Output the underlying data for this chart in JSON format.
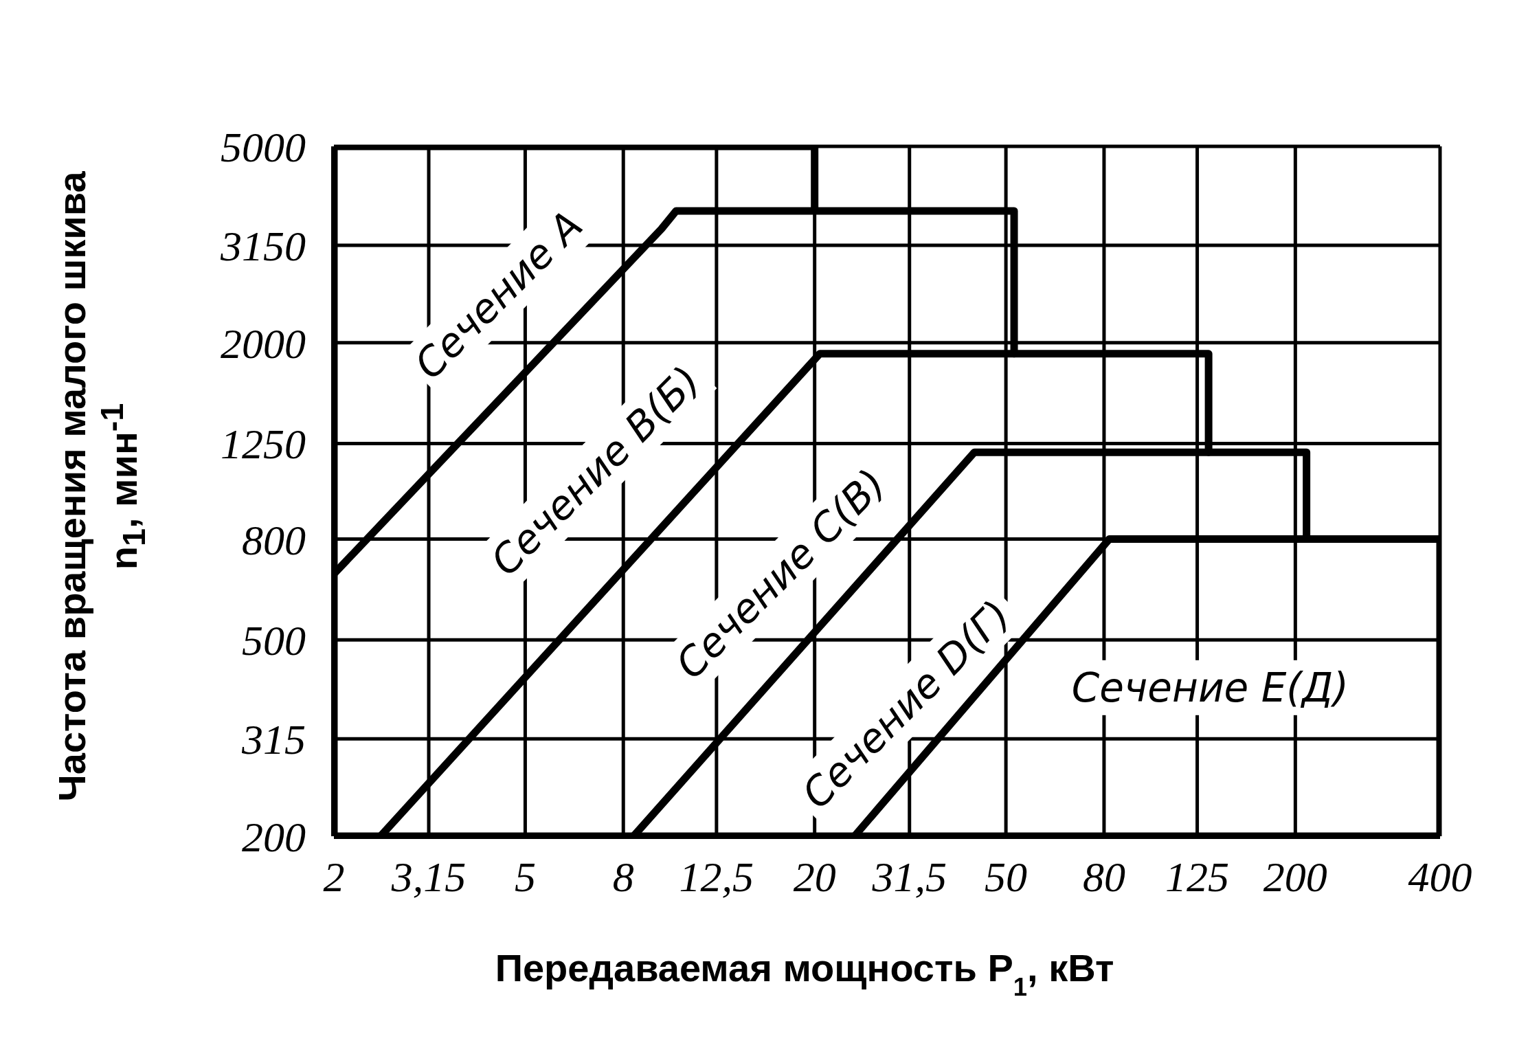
{
  "chart_data": {
    "type": "line",
    "xlabel": "Передаваемая мощность P$_{1}$, кВт",
    "ylabel": "Частота вращения малого шкива n$_{1}$, мин$^{-1}$",
    "xlim": [
      2,
      400
    ],
    "ylim": [
      200,
      5000
    ],
    "xticks": [
      2,
      {
        "value": 3.15,
        "label": "3,15"
      },
      5,
      8,
      {
        "value": 12.5,
        "label": "12,5"
      },
      20,
      {
        "value": 31.5,
        "label": "31,5"
      },
      50,
      80,
      125,
      200,
      400
    ],
    "yticks": [
      200,
      315,
      500,
      800,
      1250,
      2000,
      3150,
      5000
    ],
    "grid": true,
    "log": "xy",
    "series": [
      {
        "color": "#000000",
        "x": [
          20,
          20,
          2,
          2,
          400
        ],
        "values": [
          3700,
          5000,
          5000,
          200,
          200
        ]
      },
      {
        "color": "#000000",
        "x": [
          2,
          9.6,
          10.3,
          52,
          52
        ],
        "values": [
          680,
          3400,
          3700,
          3700,
          1900
        ]
      },
      {
        "color": "#000000",
        "x": [
          2.5,
          20.5,
          132,
          132
        ],
        "values": [
          200,
          1900,
          1900,
          1200
        ]
      },
      {
        "color": "#000000",
        "x": [
          8.4,
          43,
          211,
          211
        ],
        "values": [
          200,
          1200,
          1200,
          800
        ]
      },
      {
        "color": "#000000",
        "x": [
          24.2,
          82,
          400,
          400
        ],
        "values": [
          200,
          800,
          800,
          200
        ]
      }
    ],
    "annotations": [
      "Сечение A",
      "Сечение B(Б)",
      "Сечение C(B)",
      "Сечение D(Г)",
      "Сечение E(Д)"
    ]
  }
}
